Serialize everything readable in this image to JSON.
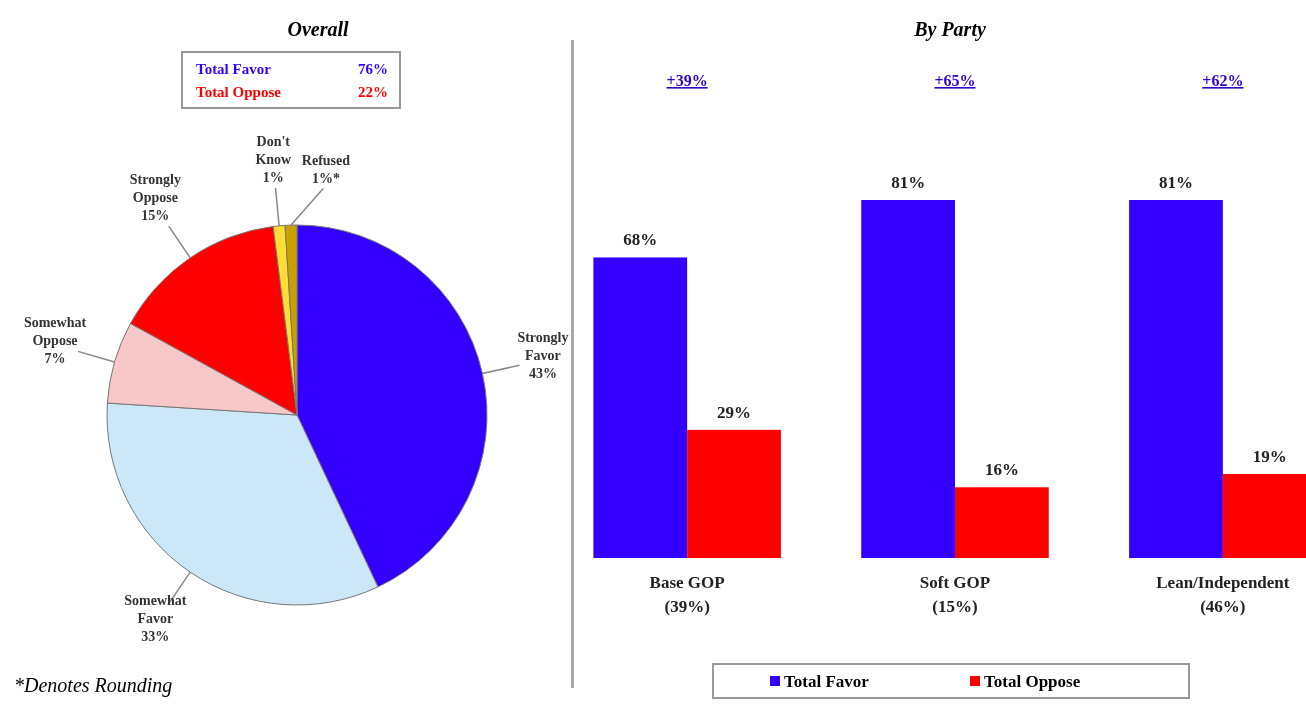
{
  "chart_data": [
    {
      "type": "pie",
      "title": "Overall",
      "categories": [
        "Strongly Favor",
        "Somewhat Favor",
        "Somewhat Oppose",
        "Strongly Oppose",
        "Don't Know",
        "Refused"
      ],
      "values": [
        43,
        33,
        7,
        15,
        1,
        1
      ],
      "value_labels": [
        "43%",
        "33%",
        "7%",
        "15%",
        "1%",
        "1%*"
      ],
      "colors": [
        "#3300ff",
        "#cce8f8",
        "#f8c8c8",
        "#ff0000",
        "#ffdd33",
        "#c8a000"
      ],
      "annotations": [
        "Total Favor 76%",
        "Total Oppose 22%",
        "*Denotes Rounding"
      ]
    },
    {
      "type": "bar",
      "title": "By Party",
      "categories": [
        "Base GOP (39%)",
        "Soft GOP (15%)",
        "Lean/Independent (46%)"
      ],
      "series": [
        {
          "name": "Total Favor",
          "color": "#3300ff",
          "values": [
            68,
            81,
            81
          ],
          "value_labels": [
            "68%",
            "81%",
            "81%"
          ]
        },
        {
          "name": "Total Oppose",
          "color": "#ff0000",
          "values": [
            29,
            16,
            19
          ],
          "value_labels": [
            "29%",
            "16%",
            "19%"
          ]
        }
      ],
      "data_labels": true,
      "legend": "bottom",
      "annotations": [
        "+39%",
        "+65%",
        "+62%"
      ]
    }
  ]
}
